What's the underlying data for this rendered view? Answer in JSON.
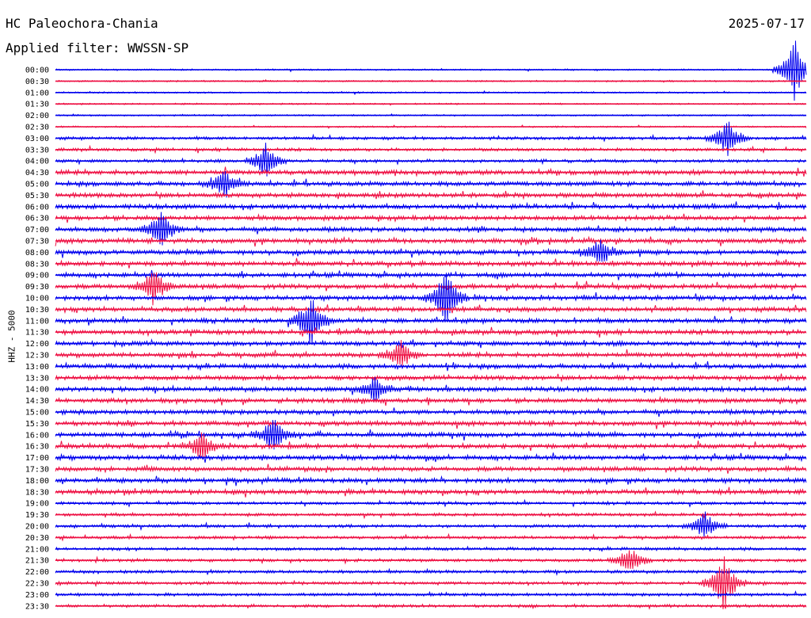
{
  "header": {
    "station": "HC Paleochora-Chania",
    "filter": "Applied filter: WWSSN-SP",
    "date": "2025-07-17"
  },
  "axis": {
    "channel_label": "HHZ - 5000"
  },
  "colors": {
    "line_a": "#0000ee",
    "line_b": "#ee1144",
    "background": "#ffffff"
  },
  "chart_data": {
    "type": "line",
    "title": "HC Paleochora-Chania",
    "subtitle": "Applied filter: WWSSN-SP",
    "ylabel": "HHZ - 5000",
    "grid": false,
    "row_labels": [
      "00:00",
      "00:30",
      "01:00",
      "01:30",
      "02:00",
      "02:30",
      "03:00",
      "03:30",
      "04:00",
      "04:30",
      "05:00",
      "05:30",
      "06:00",
      "06:30",
      "07:00",
      "07:30",
      "08:00",
      "08:30",
      "09:00",
      "09:30",
      "10:00",
      "10:30",
      "11:00",
      "11:30",
      "12:00",
      "12:30",
      "13:00",
      "13:30",
      "14:00",
      "14:30",
      "15:00",
      "15:30",
      "16:00",
      "16:30",
      "17:00",
      "17:30",
      "18:00",
      "18:30",
      "19:00",
      "19:30",
      "20:00",
      "20:30",
      "21:00",
      "21:30",
      "22:00",
      "22:30",
      "23:00",
      "23:30"
    ],
    "series": [
      {
        "values": [
          1,
          1,
          1,
          1,
          1,
          1,
          2,
          2,
          2,
          3,
          3,
          3,
          3,
          3,
          3,
          3,
          3,
          3,
          3,
          3,
          3,
          3,
          3,
          3,
          3,
          3,
          3,
          3,
          3,
          3,
          3,
          3,
          3,
          3,
          3,
          3,
          3,
          3,
          2,
          2,
          2,
          2,
          2,
          2,
          2,
          2,
          2,
          2
        ]
      }
    ],
    "events": [
      {
        "row": 0,
        "x": 0.985,
        "amp": 7
      },
      {
        "row": 6,
        "x": 0.895,
        "amp": 4
      },
      {
        "row": 8,
        "x": 0.28,
        "amp": 4
      },
      {
        "row": 10,
        "x": 0.225,
        "amp": 3
      },
      {
        "row": 14,
        "x": 0.14,
        "amp": 4
      },
      {
        "row": 16,
        "x": 0.725,
        "amp": 3
      },
      {
        "row": 19,
        "x": 0.13,
        "amp": 4
      },
      {
        "row": 20,
        "x": 0.52,
        "amp": 6
      },
      {
        "row": 22,
        "x": 0.34,
        "amp": 6
      },
      {
        "row": 25,
        "x": 0.46,
        "amp": 3
      },
      {
        "row": 28,
        "x": 0.425,
        "amp": 3
      },
      {
        "row": 32,
        "x": 0.29,
        "amp": 4
      },
      {
        "row": 33,
        "x": 0.195,
        "amp": 3
      },
      {
        "row": 40,
        "x": 0.865,
        "amp": 3
      },
      {
        "row": 43,
        "x": 0.765,
        "amp": 3
      },
      {
        "row": 45,
        "x": 0.89,
        "amp": 6
      }
    ]
  }
}
